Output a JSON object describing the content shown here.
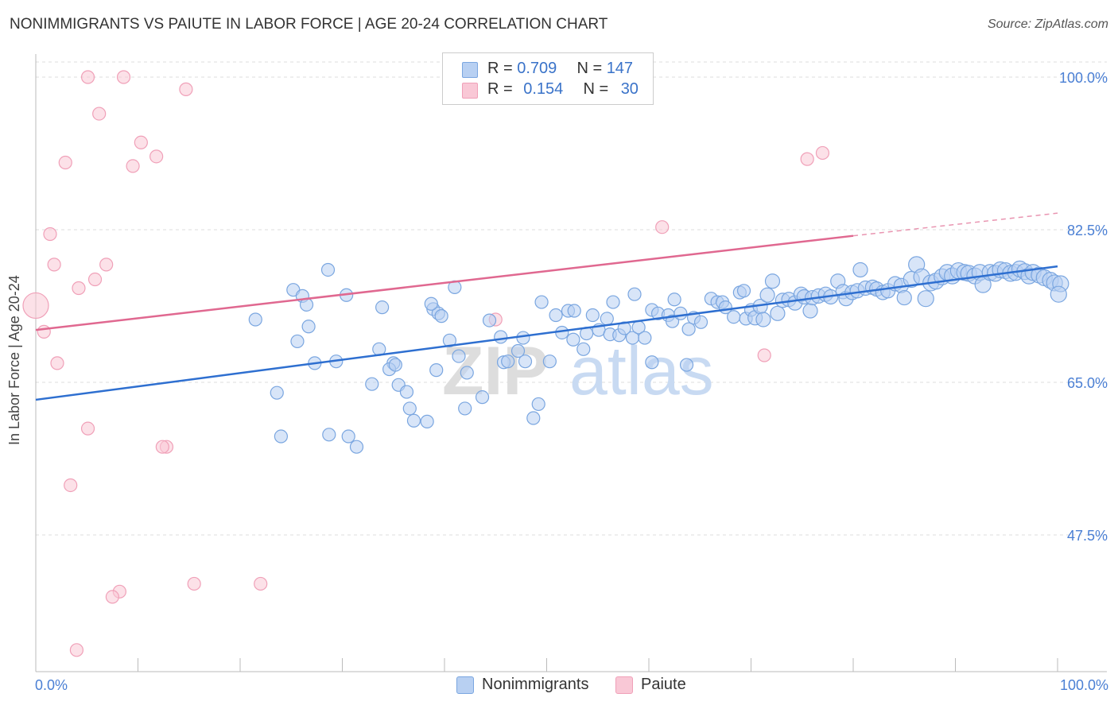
{
  "title": "NONIMMIGRANTS VS PAIUTE IN LABOR FORCE | AGE 20-24 CORRELATION CHART",
  "source": "Source: ZipAtlas.com",
  "watermark": {
    "zip": "ZIP",
    "atlas": "atlas"
  },
  "legend": {
    "r_label": "R =",
    "n_label": "N =",
    "series": [
      {
        "name": "Nonimmigrants",
        "r": "0.709",
        "n": "147"
      },
      {
        "name": "Paiute",
        "r": "0.154",
        "n": "30"
      }
    ]
  },
  "chart_data": {
    "type": "scatter",
    "title": "NONIMMIGRANTS VS PAIUTE IN LABOR FORCE | AGE 20-24 CORRELATION CHART",
    "xlabel": "",
    "ylabel": "In Labor Force | Age 20-24",
    "xlim": [
      0,
      100
    ],
    "ylim": [
      30,
      102
    ],
    "x_tick_labels": [
      "0.0%",
      "100.0%"
    ],
    "y_ticks": [
      47.5,
      65.0,
      82.5,
      100.0
    ],
    "y_tick_labels": [
      "47.5%",
      "65.0%",
      "82.5%",
      "100.0%"
    ],
    "colors": {
      "Nonimmigrants": "#7aa6e0",
      "Paiute": "#f0a0b8",
      "blue_line": "#2e6fd0",
      "pink_line": "#e06890",
      "tick_text": "#4a7fd4"
    },
    "series": [
      {
        "name": "Nonimmigrants",
        "trend": {
          "x": [
            0,
            100
          ],
          "y": [
            63.0,
            78.3
          ]
        },
        "points": [
          [
            21.5,
            72.2
          ],
          [
            25.2,
            75.6
          ],
          [
            26.1,
            74.9
          ],
          [
            25.6,
            69.7
          ],
          [
            26.7,
            71.4
          ],
          [
            26.5,
            73.9
          ],
          [
            27.3,
            67.2
          ],
          [
            28.6,
            77.9
          ],
          [
            29.4,
            67.4
          ],
          [
            30.4,
            75.0
          ],
          [
            28.7,
            59.0
          ],
          [
            30.6,
            58.8
          ],
          [
            31.4,
            57.6
          ],
          [
            24.0,
            58.8
          ],
          [
            32.9,
            64.8
          ],
          [
            33.6,
            68.8
          ],
          [
            33.9,
            73.6
          ],
          [
            35.0,
            67.2
          ],
          [
            34.6,
            66.5
          ],
          [
            35.2,
            67.0
          ],
          [
            35.5,
            64.7
          ],
          [
            36.3,
            63.9
          ],
          [
            36.6,
            62.0
          ],
          [
            37.0,
            60.6
          ],
          [
            38.9,
            73.4
          ],
          [
            39.4,
            72.9
          ],
          [
            38.7,
            74.0
          ],
          [
            39.7,
            72.6
          ],
          [
            39.2,
            66.4
          ],
          [
            41.0,
            75.9
          ],
          [
            40.5,
            69.8
          ],
          [
            41.4,
            68.0
          ],
          [
            42.2,
            66.1
          ],
          [
            43.7,
            63.3
          ],
          [
            42.0,
            62.0
          ],
          [
            44.4,
            72.1
          ],
          [
            45.5,
            70.2
          ],
          [
            45.8,
            67.3
          ],
          [
            46.2,
            67.4
          ],
          [
            47.2,
            68.6
          ],
          [
            47.7,
            70.1
          ],
          [
            47.9,
            67.4
          ],
          [
            48.7,
            60.9
          ],
          [
            49.2,
            62.5
          ],
          [
            49.5,
            74.2
          ],
          [
            50.3,
            67.4
          ],
          [
            50.9,
            72.7
          ],
          [
            51.5,
            70.7
          ],
          [
            52.1,
            73.2
          ],
          [
            52.6,
            69.9
          ],
          [
            52.7,
            73.2
          ],
          [
            53.6,
            68.8
          ],
          [
            53.9,
            70.6
          ],
          [
            54.5,
            72.7
          ],
          [
            55.1,
            71.0
          ],
          [
            55.9,
            72.3
          ],
          [
            56.2,
            70.5
          ],
          [
            56.5,
            74.2
          ],
          [
            57.1,
            70.4
          ],
          [
            57.6,
            71.2
          ],
          [
            58.4,
            70.1
          ],
          [
            58.6,
            75.1
          ],
          [
            59.0,
            71.3
          ],
          [
            59.6,
            70.1
          ],
          [
            60.3,
            73.3
          ],
          [
            60.3,
            67.3
          ],
          [
            60.9,
            72.9
          ],
          [
            61.9,
            72.7
          ],
          [
            62.3,
            72.0
          ],
          [
            62.5,
            74.5
          ],
          [
            63.1,
            72.9
          ],
          [
            63.7,
            67.0
          ],
          [
            63.9,
            71.1
          ],
          [
            64.4,
            72.4
          ],
          [
            65.1,
            71.9
          ],
          [
            66.1,
            74.6
          ],
          [
            66.7,
            74.2
          ],
          [
            67.2,
            74.2
          ],
          [
            67.5,
            73.6
          ],
          [
            68.3,
            72.5
          ],
          [
            68.9,
            75.3
          ],
          [
            69.3,
            75.5
          ],
          [
            69.5,
            72.3
          ],
          [
            70.0,
            73.3
          ],
          [
            70.4,
            72.4
          ],
          [
            70.9,
            73.7
          ],
          [
            71.2,
            72.2
          ],
          [
            71.6,
            75.0
          ],
          [
            72.1,
            76.6
          ],
          [
            72.6,
            72.9
          ],
          [
            73.1,
            74.4
          ],
          [
            73.7,
            74.5
          ],
          [
            74.3,
            74.1
          ],
          [
            74.9,
            75.1
          ],
          [
            75.2,
            74.8
          ],
          [
            75.8,
            73.2
          ],
          [
            76.0,
            74.7
          ],
          [
            76.6,
            74.9
          ],
          [
            77.3,
            75.1
          ],
          [
            77.8,
            74.8
          ],
          [
            78.5,
            76.6
          ],
          [
            79.0,
            75.4
          ],
          [
            79.3,
            74.6
          ],
          [
            79.9,
            75.3
          ],
          [
            80.4,
            75.5
          ],
          [
            80.7,
            77.9
          ],
          [
            81.2,
            75.8
          ],
          [
            81.9,
            75.9
          ],
          [
            82.3,
            75.7
          ],
          [
            82.9,
            75.3
          ],
          [
            83.4,
            75.5
          ],
          [
            84.1,
            76.3
          ],
          [
            84.7,
            76.1
          ],
          [
            85.0,
            74.7
          ],
          [
            85.7,
            76.8
          ],
          [
            86.2,
            78.5
          ],
          [
            86.7,
            77.1
          ],
          [
            87.1,
            74.6
          ],
          [
            87.6,
            76.4
          ],
          [
            88.1,
            76.6
          ],
          [
            88.7,
            77.1
          ],
          [
            89.2,
            77.6
          ],
          [
            89.7,
            77.2
          ],
          [
            90.3,
            77.8
          ],
          [
            90.9,
            77.6
          ],
          [
            91.3,
            77.5
          ],
          [
            91.9,
            77.2
          ],
          [
            92.4,
            77.6
          ],
          [
            92.7,
            76.2
          ],
          [
            93.4,
            77.6
          ],
          [
            93.9,
            77.5
          ],
          [
            94.4,
            77.9
          ],
          [
            94.9,
            77.8
          ],
          [
            95.4,
            77.5
          ],
          [
            95.9,
            77.6
          ],
          [
            96.3,
            78.0
          ],
          [
            96.8,
            77.7
          ],
          [
            97.2,
            77.2
          ],
          [
            97.6,
            77.6
          ],
          [
            98.2,
            77.3
          ],
          [
            98.7,
            77.0
          ],
          [
            99.3,
            76.7
          ],
          [
            99.7,
            76.4
          ],
          [
            100.3,
            76.3
          ],
          [
            100.1,
            75.1
          ],
          [
            23.6,
            63.8
          ],
          [
            38.3,
            60.5
          ]
        ]
      },
      {
        "name": "Paiute",
        "trend": {
          "x": [
            0,
            80
          ],
          "y": [
            71.0,
            81.8
          ],
          "dashed_extension": {
            "x": [
              80,
              100
            ],
            "y": [
              81.8,
              84.4
            ]
          }
        },
        "points": [
          [
            5.1,
            100.0
          ],
          [
            8.6,
            100.0
          ],
          [
            14.7,
            98.6
          ],
          [
            6.2,
            95.8
          ],
          [
            10.3,
            92.5
          ],
          [
            11.8,
            90.9
          ],
          [
            2.9,
            90.2
          ],
          [
            9.5,
            89.8
          ],
          [
            1.4,
            82.0
          ],
          [
            1.8,
            78.5
          ],
          [
            6.9,
            78.5
          ],
          [
            5.8,
            76.8
          ],
          [
            4.2,
            75.8
          ],
          [
            0.8,
            70.8
          ],
          [
            2.1,
            67.2
          ],
          [
            5.1,
            59.7
          ],
          [
            12.8,
            57.6
          ],
          [
            12.4,
            57.6
          ],
          [
            3.4,
            53.2
          ],
          [
            15.5,
            41.9
          ],
          [
            8.2,
            41.0
          ],
          [
            7.5,
            40.4
          ],
          [
            22.0,
            41.9
          ],
          [
            4.0,
            34.3
          ],
          [
            61.3,
            82.8
          ],
          [
            75.5,
            90.6
          ],
          [
            77.0,
            91.3
          ],
          [
            71.3,
            68.1
          ],
          [
            45.0,
            72.2
          ],
          [
            0,
            73.8
          ]
        ]
      }
    ]
  }
}
